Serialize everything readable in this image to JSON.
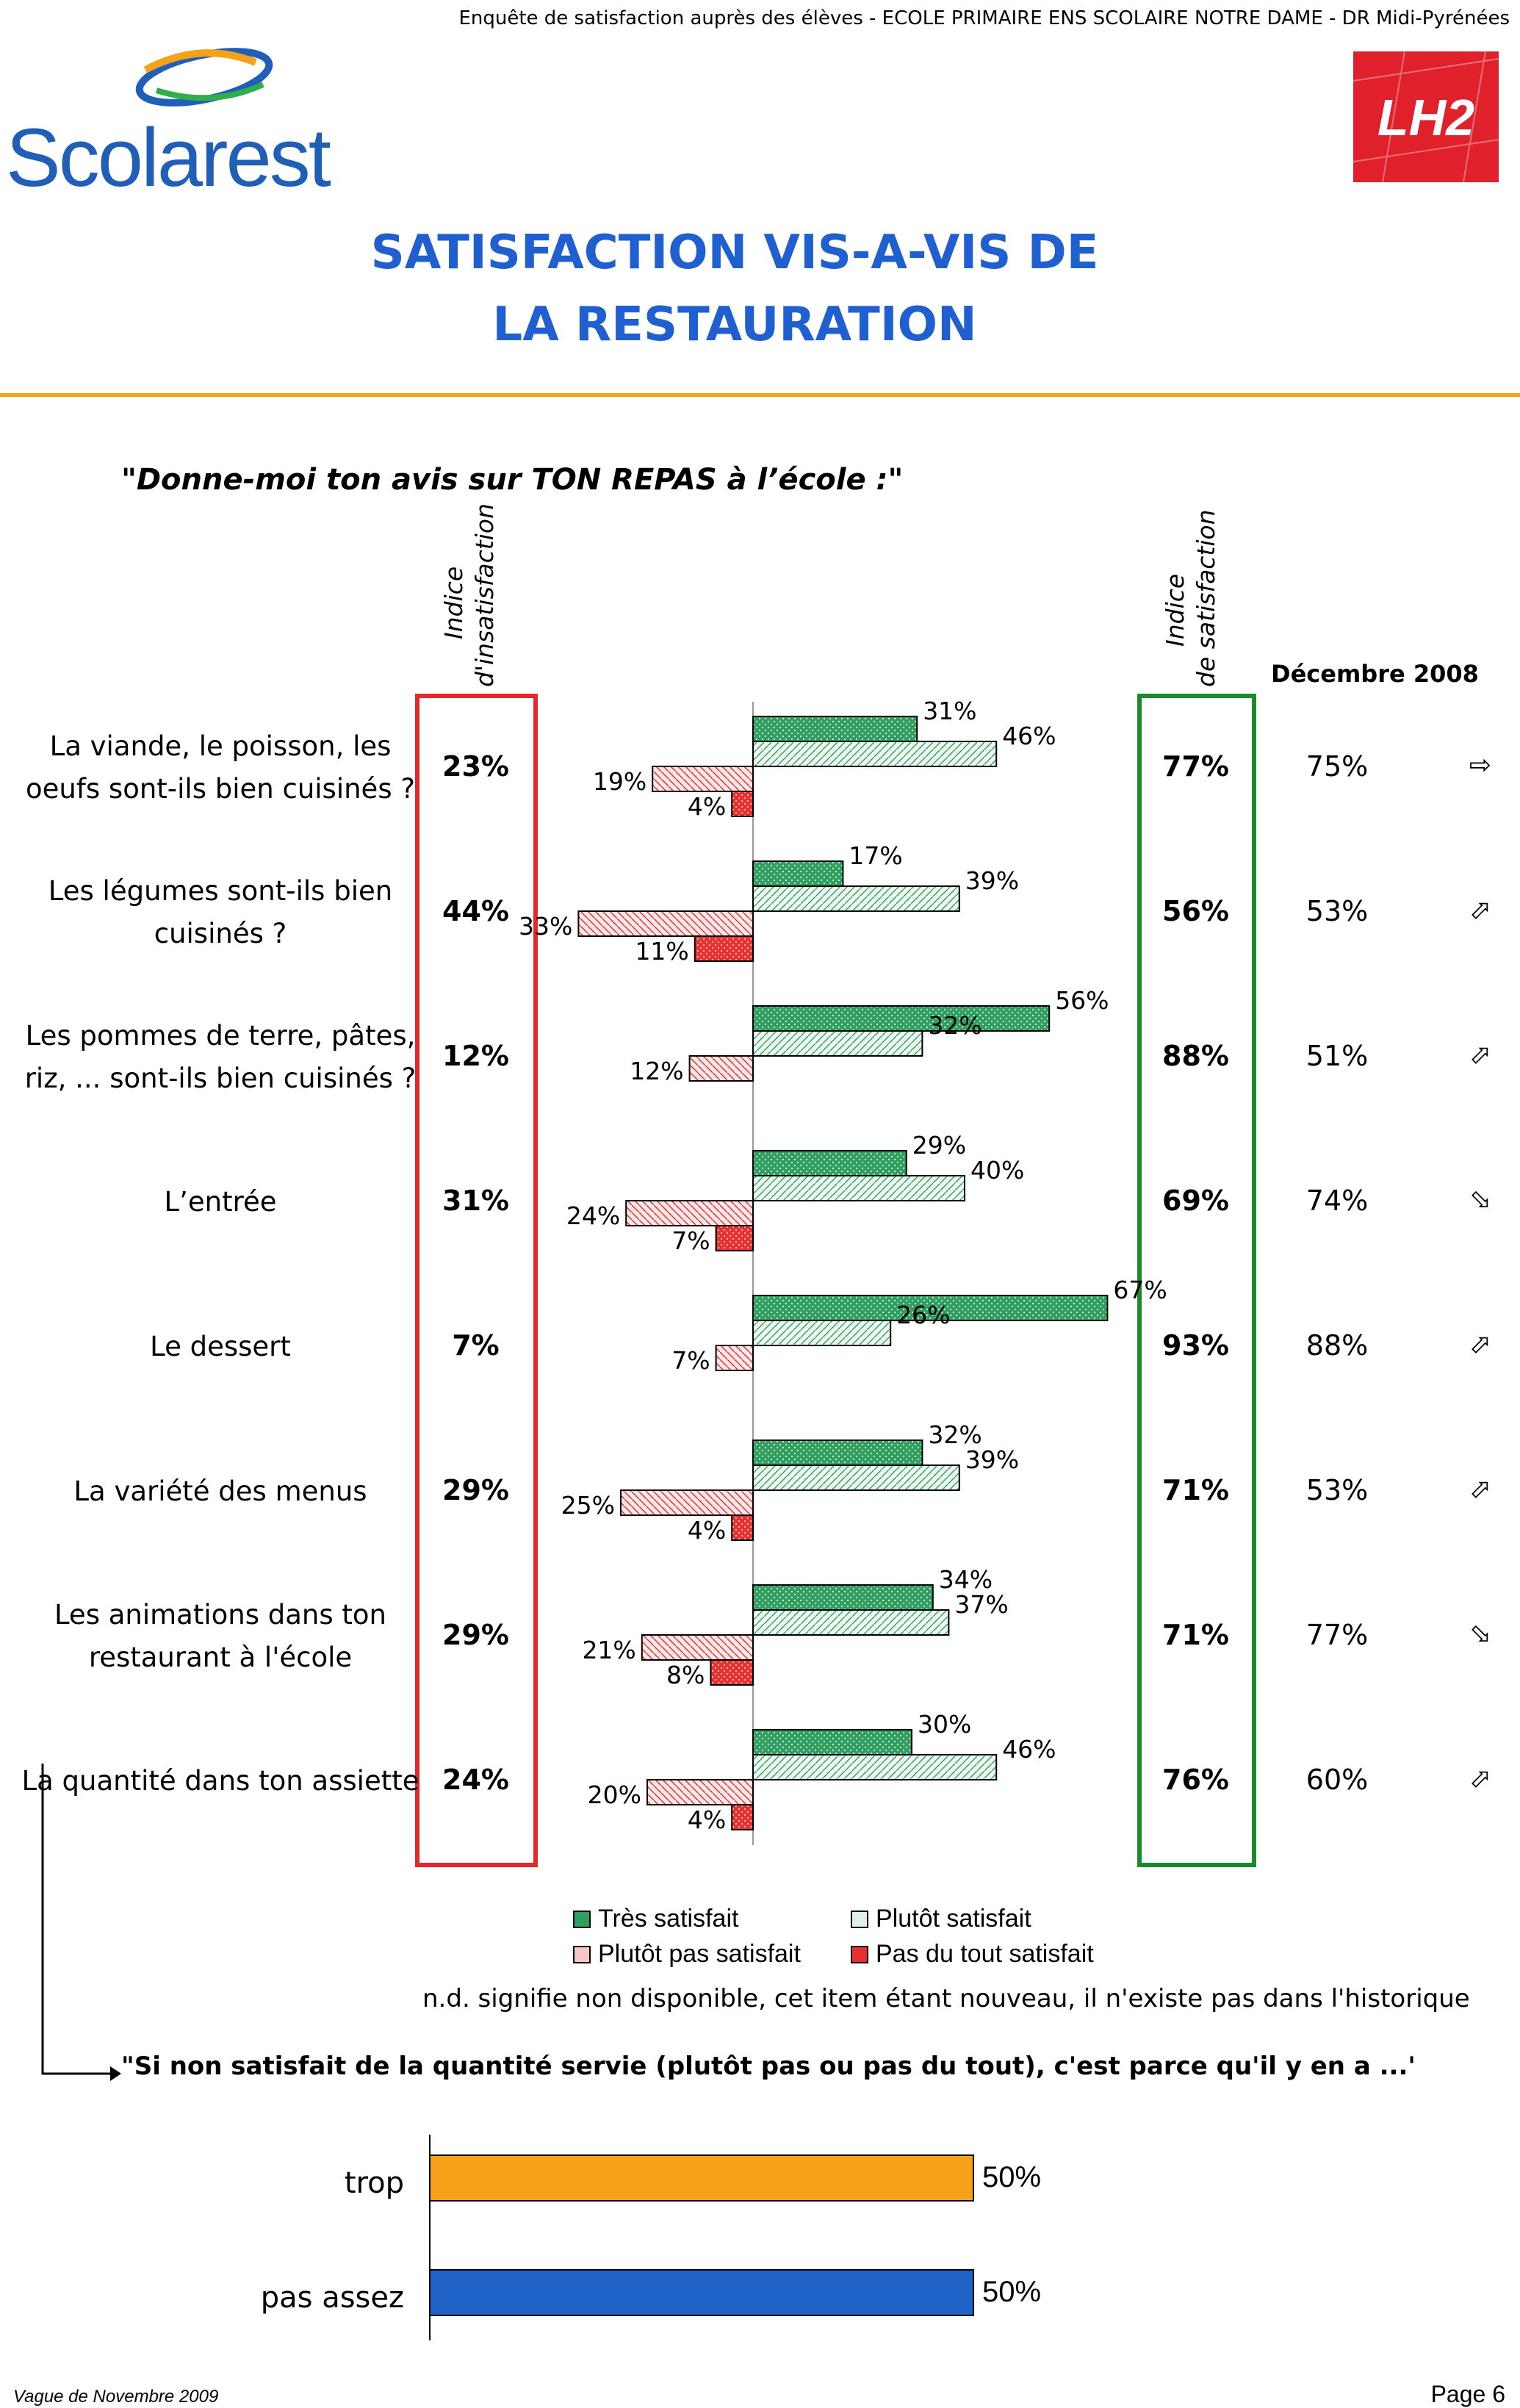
{
  "header": {
    "survey_line": "Enquête de satisfaction auprès des élèves - ECOLE PRIMAIRE ENS SCOLAIRE NOTRE DAME - DR Midi-Pyrénées",
    "logo_left_text": "Scolarest",
    "logo_right_text": "LH2"
  },
  "title": {
    "line1": "SATISFACTION VIS-A-VIS DE",
    "line2": "LA RESTAURATION"
  },
  "question": "\"Donne-moi ton avis sur TON REPAS à l’école :\"",
  "columns": {
    "insat_l1": "Indice",
    "insat_l2": "d'insatisfaction",
    "sat_l1": "Indice",
    "sat_l2": "de satisfaction",
    "dec2008": "Décembre 2008"
  },
  "colors": {
    "tres_satisfait": "#2f9e5e",
    "plutot_satisfait": "#dff0e6",
    "plutot_pas": "#f6c6c6",
    "pas_du_tout": "#e83030",
    "insat_border": "#e82828",
    "sat_border": "#1a8a2a",
    "title_blue": "#1f5fd0",
    "qty_trop": "#f7a11a",
    "qty_pas_assez": "#1f63c8"
  },
  "chart_data": [
    {
      "type": "bar",
      "orientation": "horizontal-diverging",
      "categories": [
        "La viande, le poisson, les oeufs sont-ils bien cuisinés ?",
        "Les légumes sont-ils bien cuisinés ?",
        "Les pommes de terre, pâtes, riz, ... sont-ils bien cuisinés ?",
        "L’entrée",
        "Le dessert",
        "La variété des menus",
        "Les animations dans ton restaurant à l'école",
        "La quantité dans ton assiette"
      ],
      "series": [
        {
          "name": "Très satisfait",
          "values": [
            31,
            17,
            56,
            29,
            67,
            32,
            34,
            30
          ]
        },
        {
          "name": "Plutôt satisfait",
          "values": [
            46,
            39,
            32,
            40,
            26,
            39,
            37,
            46
          ]
        },
        {
          "name": "Plutôt pas satisfait",
          "values": [
            19,
            33,
            12,
            24,
            7,
            25,
            21,
            20
          ]
        },
        {
          "name": "Pas du tout satisfait",
          "values": [
            4,
            11,
            null,
            7,
            null,
            4,
            8,
            4
          ]
        }
      ],
      "rows": [
        {
          "label_lines": [
            "La viande, le poisson, les",
            "oeufs sont-ils bien cuisinés ?"
          ],
          "insat": "23%",
          "sat": "77%",
          "dec2008": "75%",
          "trend": "⇨"
        },
        {
          "label_lines": [
            "Les légumes sont-ils bien",
            "cuisinés ?"
          ],
          "insat": "44%",
          "sat": "56%",
          "dec2008": "53%",
          "trend": "⬀"
        },
        {
          "label_lines": [
            "Les pommes de terre, pâtes,",
            "riz, ... sont-ils bien cuisinés ?"
          ],
          "insat": "12%",
          "sat": "88%",
          "dec2008": "51%",
          "trend": "⬀"
        },
        {
          "label_lines": [
            "L’entrée"
          ],
          "insat": "31%",
          "sat": "69%",
          "dec2008": "74%",
          "trend": "⬂"
        },
        {
          "label_lines": [
            "Le dessert"
          ],
          "insat": "7%",
          "sat": "93%",
          "dec2008": "88%",
          "trend": "⬀"
        },
        {
          "label_lines": [
            "La variété des menus"
          ],
          "insat": "29%",
          "sat": "71%",
          "dec2008": "53%",
          "trend": "⬀"
        },
        {
          "label_lines": [
            "Les animations dans ton",
            "restaurant à l'école"
          ],
          "insat": "29%",
          "sat": "71%",
          "dec2008": "77%",
          "trend": "⬂"
        },
        {
          "label_lines": [
            "La quantité dans ton assiette"
          ],
          "insat": "24%",
          "sat": "76%",
          "dec2008": "60%",
          "trend": "⬀"
        }
      ]
    },
    {
      "type": "bar",
      "orientation": "horizontal",
      "categories": [
        "trop",
        "pas assez"
      ],
      "values": [
        50,
        50
      ]
    }
  ],
  "legend": [
    "Très satisfait",
    "Plutôt satisfait",
    "Plutôt pas satisfait",
    "Pas du tout satisfait"
  ],
  "nd_note": "n.d. signifie non disponible, cet item étant nouveau, il n'existe pas dans l'historique",
  "followup_question": "\"Si non satisfait de la quantité servie (plutôt pas ou pas du tout), c'est parce qu'il y en a ...'",
  "footer": {
    "wave": "Vague de Novembre 2009",
    "page": "Page 6"
  }
}
